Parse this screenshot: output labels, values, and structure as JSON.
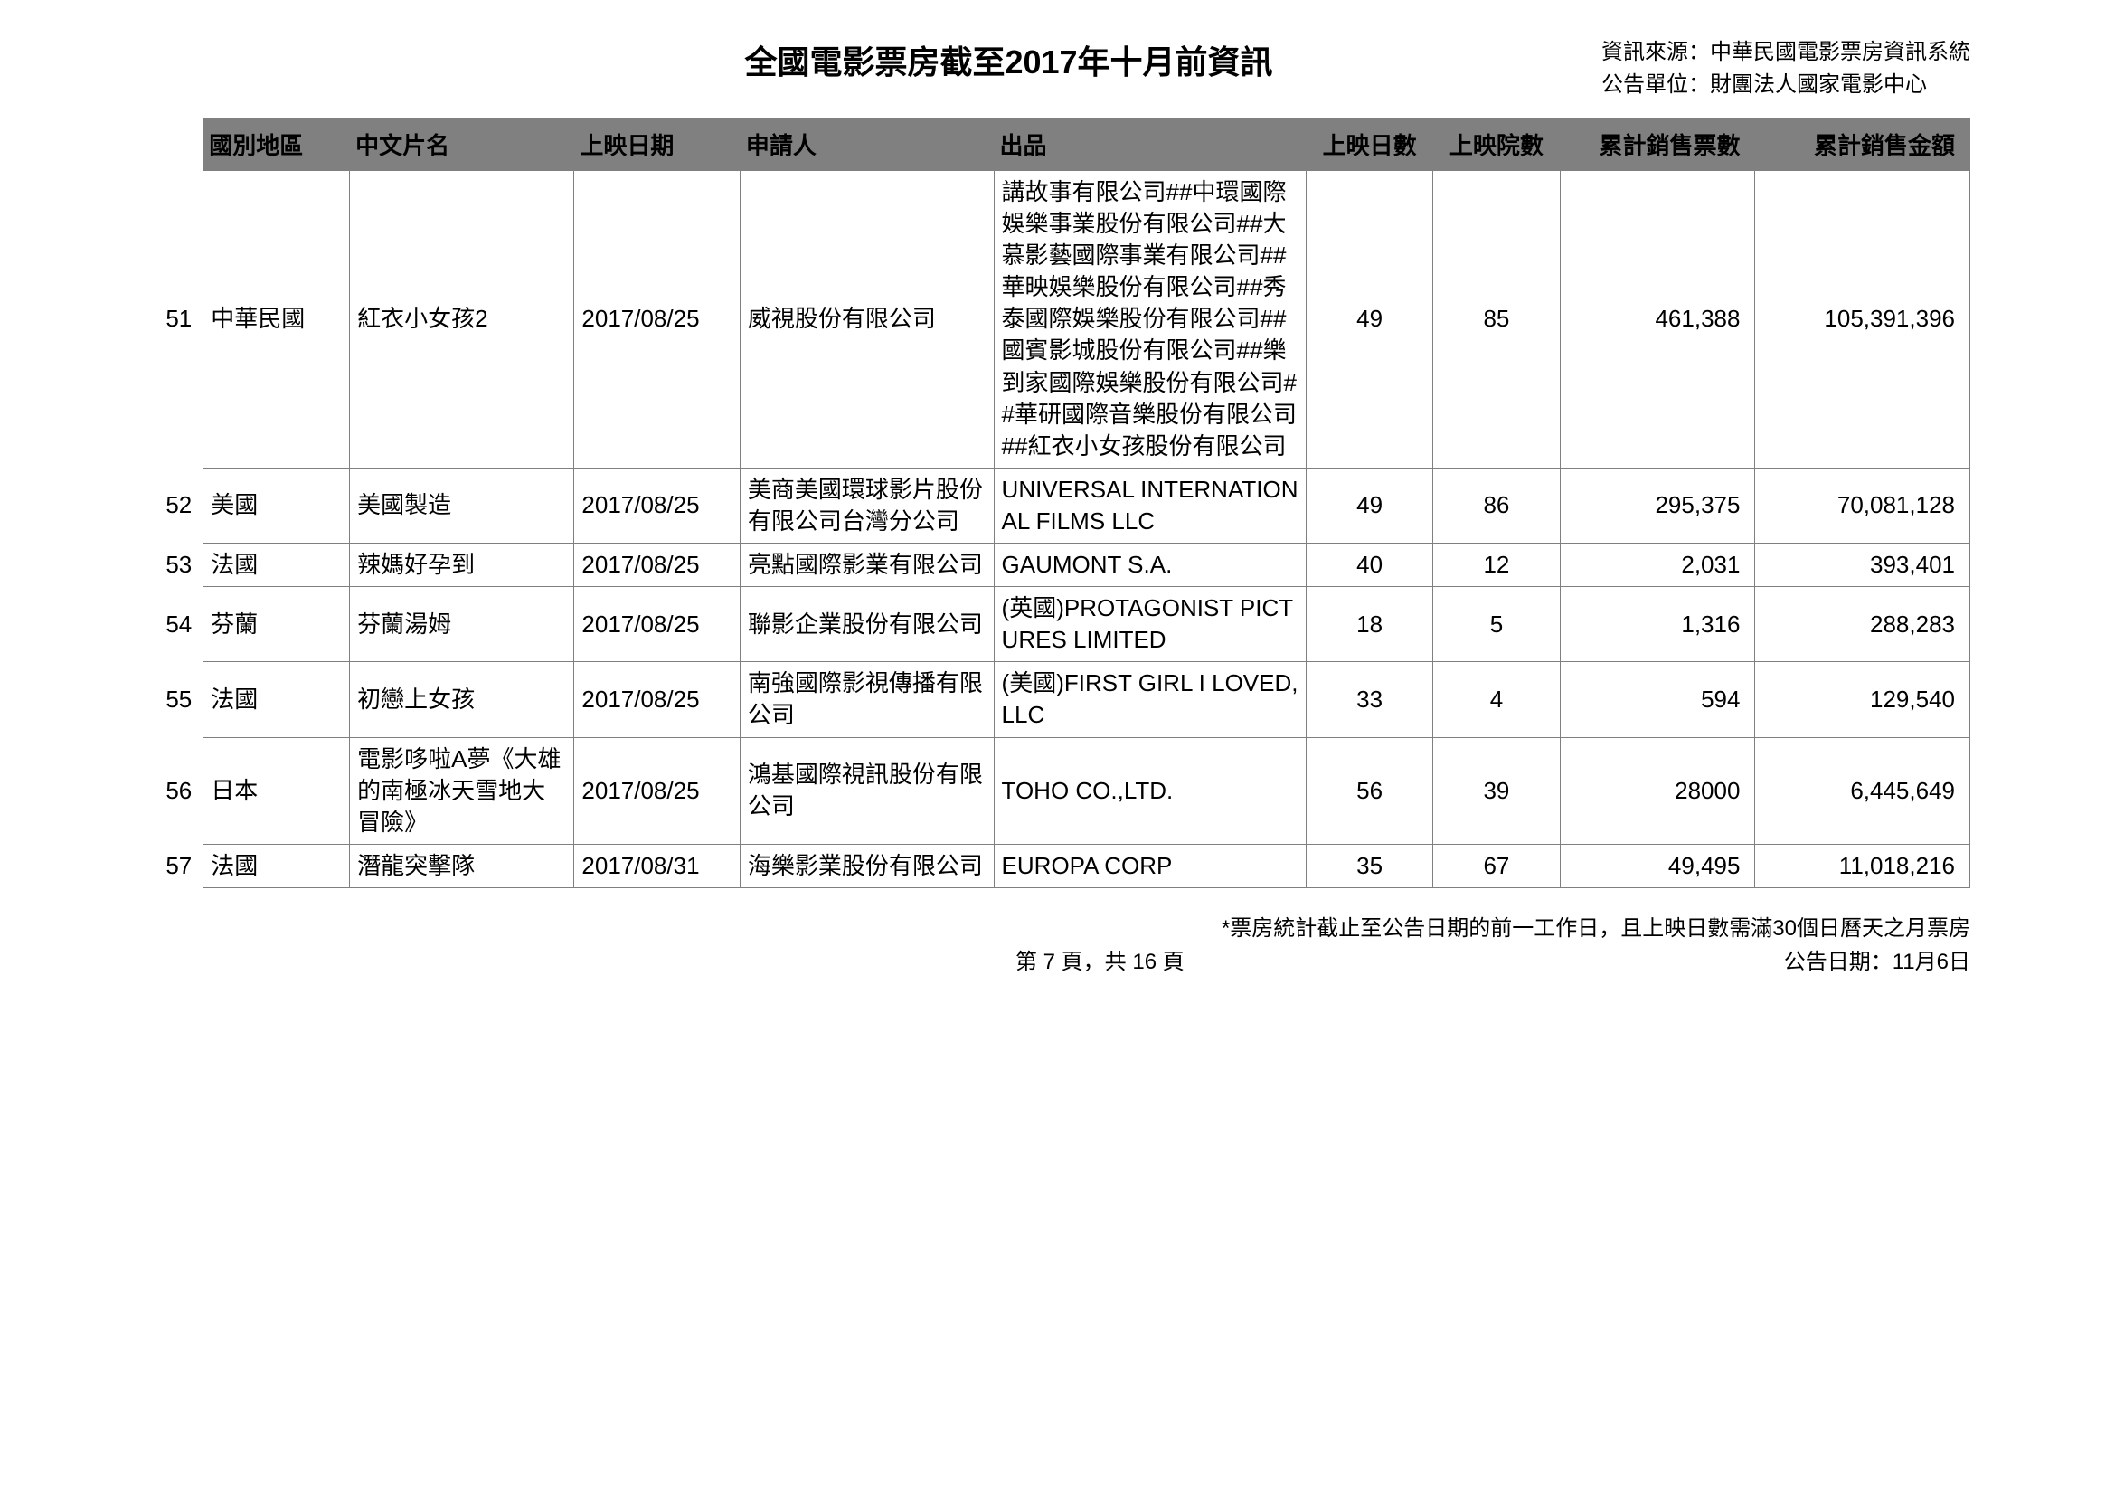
{
  "page": {
    "title": "全國電影票房截至2017年十月前資訊",
    "info_source": "資訊來源：中華民國電影票房資訊系統",
    "info_publisher": "公告單位：財團法人國家電影中心",
    "footnote": "*票房統計截止至公告日期的前一工作日，且上映日數需滿30個日曆天之月票房",
    "page_indicator": "第 7 頁，共 16 頁",
    "announce_date": "公告日期：11月6日"
  },
  "table": {
    "columns": [
      "國別地區",
      "中文片名",
      "上映日期",
      "申請人",
      "出品",
      "上映日數",
      "上映院數",
      "累計銷售票數",
      "累計銷售金額"
    ],
    "rows": [
      {
        "idx": "51",
        "region": "中華民國",
        "title": "紅衣小女孩2",
        "date": "2017/08/25",
        "applicant": "威視股份有限公司",
        "producer": "講故事有限公司##中環國際娛樂事業股份有限公司##大慕影藝國際事業有限公司##華映娛樂股份有限公司##秀泰國際娛樂股份有限公司##國賓影城股份有限公司##樂到家國際娛樂股份有限公司##華研國際音樂股份有限公司##紅衣小女孩股份有限公司",
        "days": "49",
        "theaters": "85",
        "tickets": "461,388",
        "amount": "105,391,396"
      },
      {
        "idx": "52",
        "region": "美國",
        "title": "美國製造",
        "date": "2017/08/25",
        "applicant": "美商美國環球影片股份有限公司台灣分公司",
        "producer": "UNIVERSAL INTERNATIONAL FILMS LLC",
        "days": "49",
        "theaters": "86",
        "tickets": "295,375",
        "amount": "70,081,128"
      },
      {
        "idx": "53",
        "region": "法國",
        "title": "辣媽好孕到",
        "date": "2017/08/25",
        "applicant": "亮點國際影業有限公司",
        "producer": "GAUMONT S.A.",
        "days": "40",
        "theaters": "12",
        "tickets": "2,031",
        "amount": "393,401"
      },
      {
        "idx": "54",
        "region": "芬蘭",
        "title": "芬蘭湯姆",
        "date": "2017/08/25",
        "applicant": "聯影企業股份有限公司",
        "producer": "(英國)PROTAGONIST PICTURES LIMITED",
        "days": "18",
        "theaters": "5",
        "tickets": "1,316",
        "amount": "288,283"
      },
      {
        "idx": "55",
        "region": "法國",
        "title": "初戀上女孩",
        "date": "2017/08/25",
        "applicant": "南強國際影視傳播有限公司",
        "producer": "(美國)FIRST GIRL I LOVED,LLC",
        "days": "33",
        "theaters": "4",
        "tickets": "594",
        "amount": "129,540"
      },
      {
        "idx": "56",
        "region": "日本",
        "title": "電影哆啦A夢《大雄的南極冰天雪地大冒險》",
        "date": "2017/08/25",
        "applicant": "鴻基國際視訊股份有限公司",
        "producer": "TOHO CO.,LTD.",
        "days": "56",
        "theaters": "39",
        "tickets": "28000",
        "amount": "6,445,649"
      },
      {
        "idx": "57",
        "region": "法國",
        "title": "潛龍突擊隊",
        "date": "2017/08/31",
        "applicant": "海樂影業股份有限公司",
        "producer": "EUROPA CORP",
        "days": "35",
        "theaters": "67",
        "tickets": "49,495",
        "amount": "11,018,216"
      }
    ]
  }
}
